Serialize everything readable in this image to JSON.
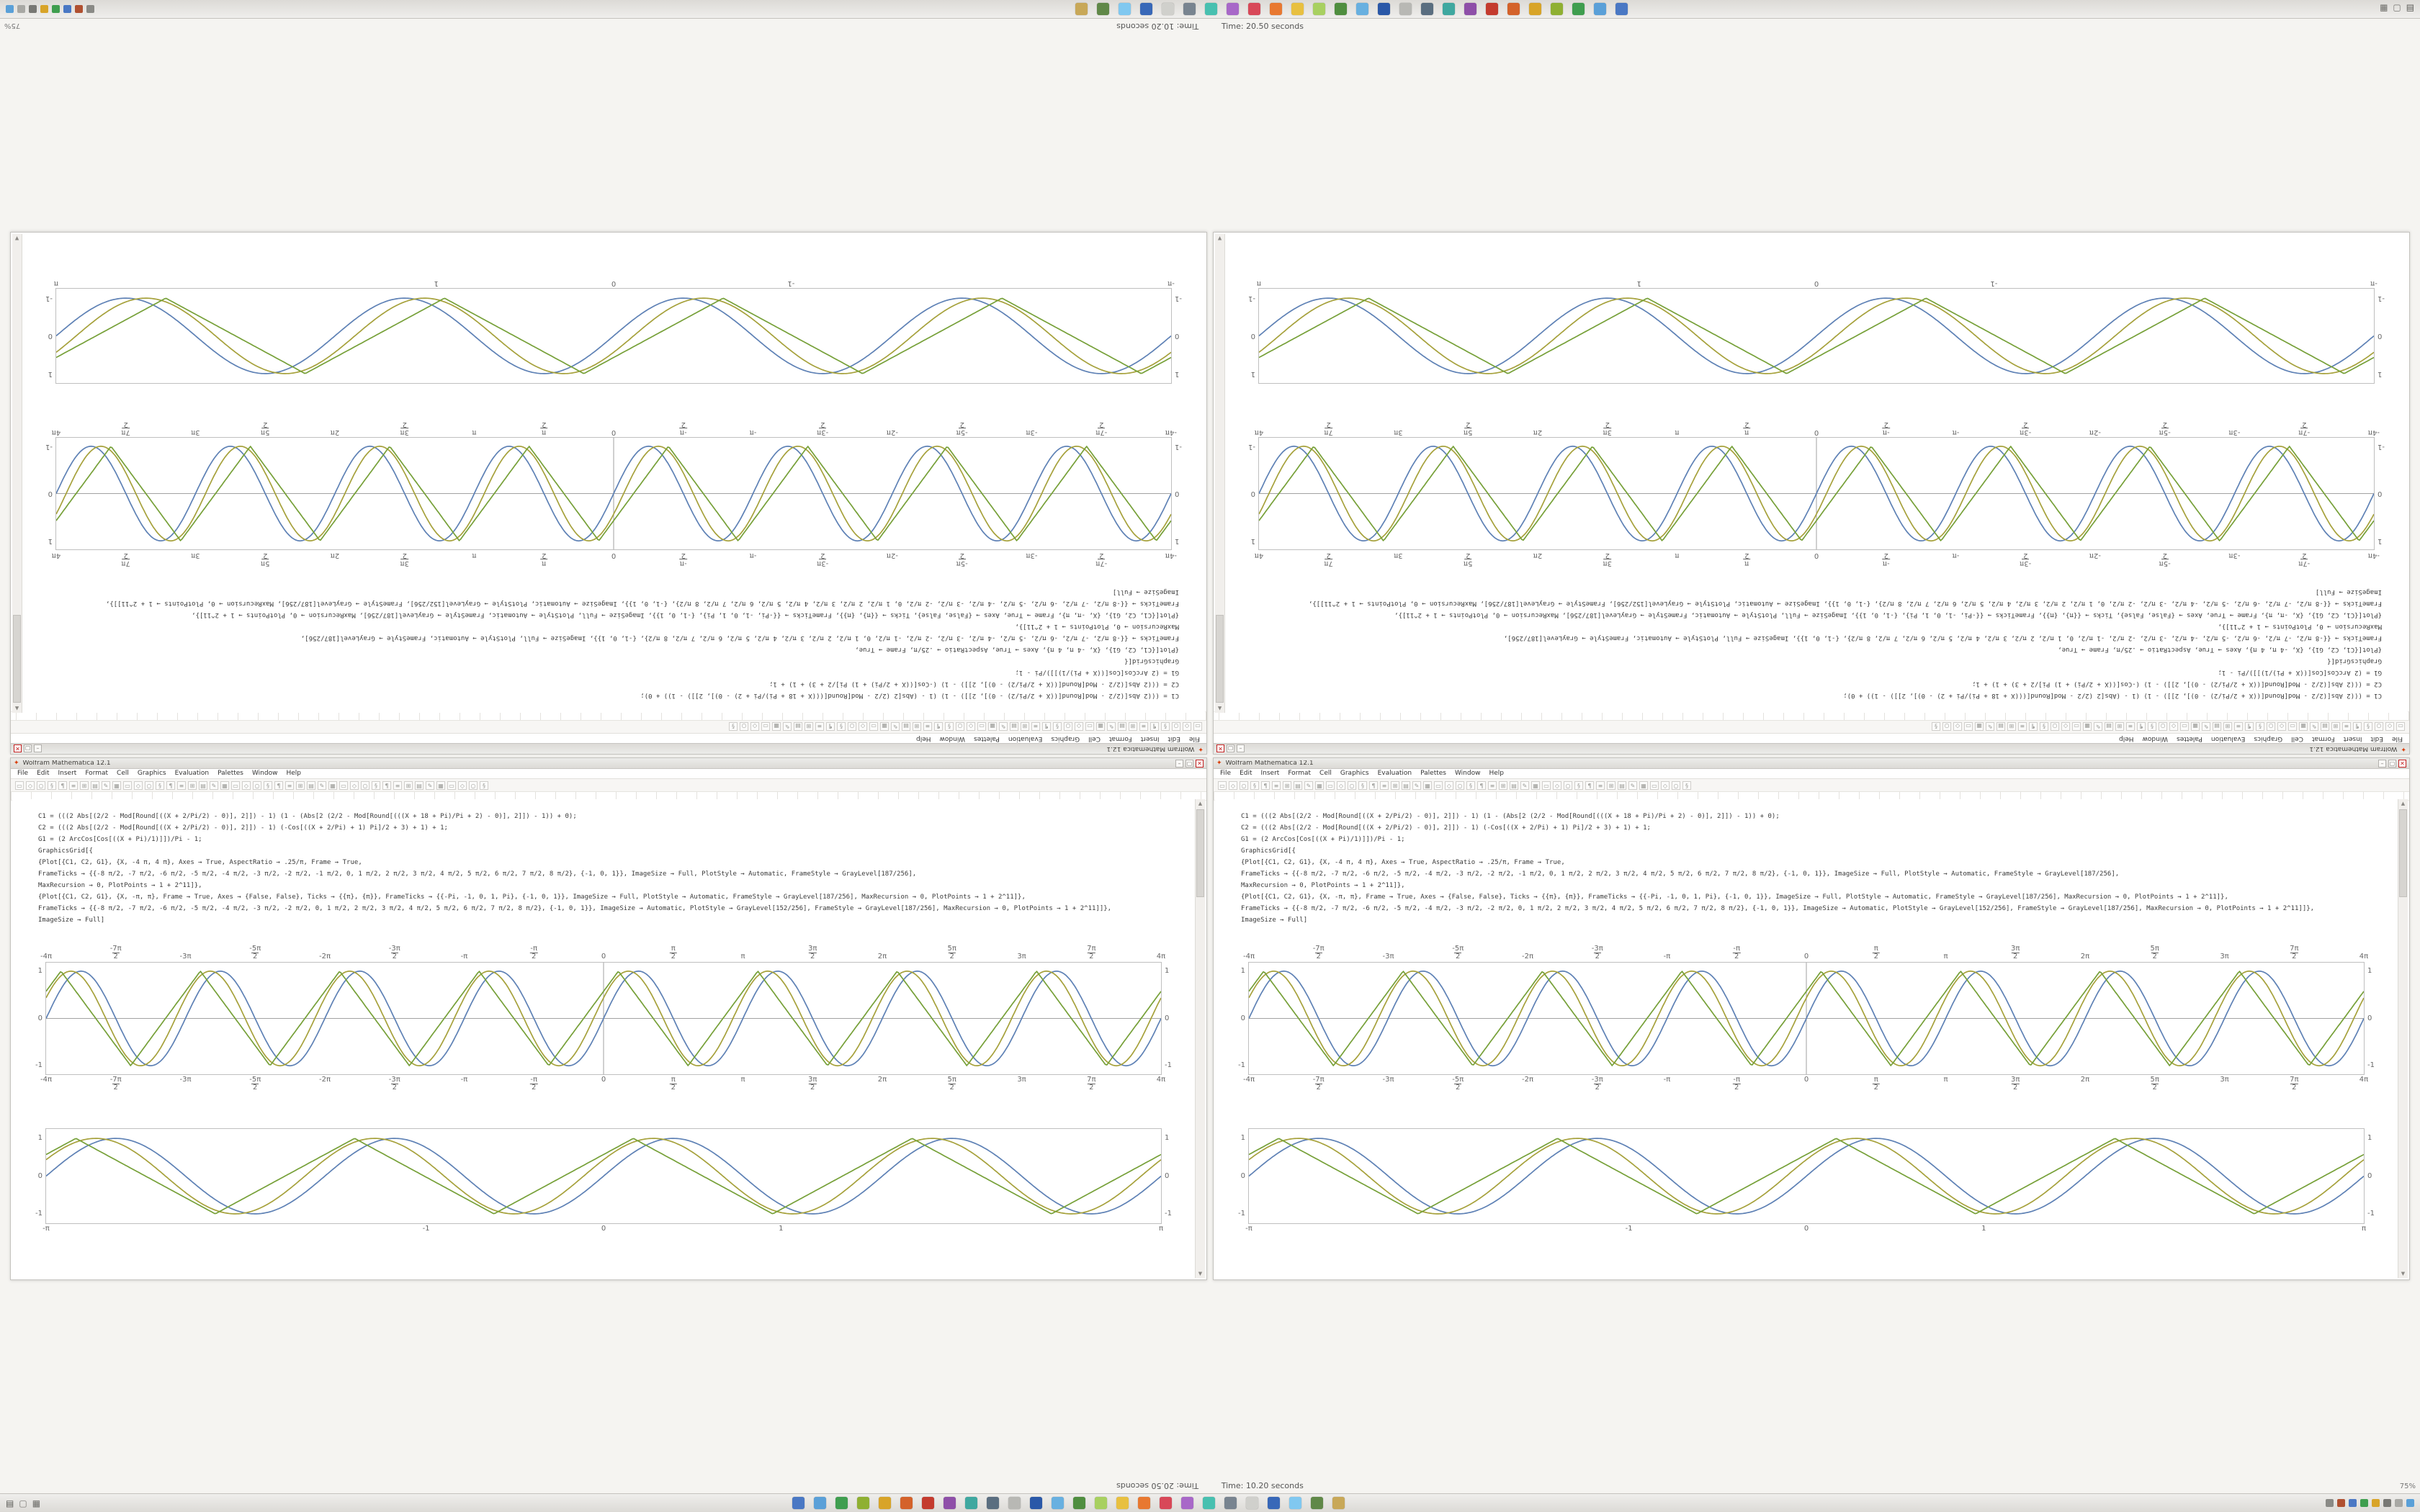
{
  "desktop": {
    "bg": "#f5f4f1"
  },
  "status": {
    "time_rotated": "Time: 20.50 seconds",
    "time_normal": "Time: 10.20 seconds",
    "zoom": "75%"
  },
  "taskbar": {
    "left_icons": [
      {
        "name": "start-menu-icon",
        "glyph": "▤",
        "color": "#5a5a56"
      },
      {
        "name": "show-desktop-icon",
        "glyph": "▢",
        "color": "#7a7874"
      },
      {
        "name": "file-manager-icon",
        "glyph": "▦",
        "color": "#6b6b67"
      }
    ],
    "app_icons": [
      {
        "name": "app-icon",
        "color": "#4a78c4"
      },
      {
        "name": "app-icon",
        "color": "#5aa0d8"
      },
      {
        "name": "app-icon",
        "color": "#3f9e4f"
      },
      {
        "name": "app-icon",
        "color": "#8fb032"
      },
      {
        "name": "app-icon",
        "color": "#d8a428"
      },
      {
        "name": "app-icon",
        "color": "#d4622a"
      },
      {
        "name": "app-icon",
        "color": "#c43b2e"
      },
      {
        "name": "app-icon",
        "color": "#8e4fa8"
      },
      {
        "name": "app-icon",
        "color": "#3fa8a0"
      },
      {
        "name": "app-icon",
        "color": "#5a6e80"
      },
      {
        "name": "app-icon",
        "color": "#b8b8b4"
      },
      {
        "name": "app-icon",
        "color": "#2a58a8"
      },
      {
        "name": "app-icon",
        "color": "#68b0e0"
      },
      {
        "name": "app-icon",
        "color": "#4f8e3f"
      },
      {
        "name": "app-icon",
        "color": "#a8d060"
      },
      {
        "name": "app-icon",
        "color": "#e8c040"
      },
      {
        "name": "app-icon",
        "color": "#e87830"
      },
      {
        "name": "app-icon",
        "color": "#d84858"
      },
      {
        "name": "app-icon",
        "color": "#a868c8"
      },
      {
        "name": "app-icon",
        "color": "#48c0b0"
      },
      {
        "name": "app-icon",
        "color": "#788490"
      },
      {
        "name": "app-icon",
        "color": "#d0d0cc"
      },
      {
        "name": "app-icon",
        "color": "#3868b8"
      },
      {
        "name": "app-icon",
        "color": "#80c8f0"
      },
      {
        "name": "app-icon",
        "color": "#608848"
      },
      {
        "name": "app-icon",
        "color": "#c8a858"
      }
    ],
    "tray_icons": [
      {
        "name": "tray-icon",
        "color": "#8a8a86"
      },
      {
        "name": "tray-icon",
        "color": "#b05030"
      },
      {
        "name": "tray-icon",
        "color": "#4a78c4"
      },
      {
        "name": "tray-icon",
        "color": "#3f9e4f"
      },
      {
        "name": "tray-icon",
        "color": "#d8a428"
      },
      {
        "name": "tray-icon",
        "color": "#787874"
      },
      {
        "name": "tray-icon",
        "color": "#a8a8a4"
      },
      {
        "name": "tray-icon",
        "color": "#5aa0d8"
      }
    ]
  },
  "window": {
    "title": "Wolfram Mathematica 12.1",
    "controls": {
      "minimize": "–",
      "maximize": "▢",
      "close": "✕"
    },
    "menu_items": [
      "File",
      "Edit",
      "Insert",
      "Format",
      "Cell",
      "Graphics",
      "Evaluation",
      "Palettes",
      "Window",
      "Help"
    ],
    "toolbar_glyphs": [
      "▭",
      "◇",
      "○",
      "§",
      "¶",
      "≡",
      "⊞",
      "▤",
      "✎",
      "▦"
    ],
    "code_lines": [
      "C1 = (((2 Abs[(2/2 - Mod[Round[((X + 2/Pi/2) - 0)], 2]]) - 1) (1 - (Abs[2 (2/2 - Mod[Round[(((X + 18 + Pi)/Pi + 2) - 0)], 2]]) - 1)) + 0);",
      "C2 = (((2 Abs[(2/2 - Mod[Round[((X + 2/Pi/2) - 0)], 2]]) - 1) (-Cos[((X + 2/Pi) + 1) Pi]/2 + 3) + 1) + 1;",
      "G1 = (2 ArcCos[Cos[((X + Pi)/1)]])/Pi - 1;",
      "GraphicsGrid[{",
      "{Plot[{C1, C2, G1}, {X, -4 π, 4 π}, Axes → True, AspectRatio → .25/π, Frame → True,",
      "FrameTicks → {{-8 π/2, -7 π/2, -6 π/2, -5 π/2, -4 π/2, -3 π/2, -2 π/2, -1 π/2, 0, 1 π/2, 2 π/2, 3 π/2, 4 π/2, 5 π/2, 6 π/2, 7 π/2, 8 π/2}, {-1, 0, 1}}, ImageSize → Full, PlotStyle → Automatic, FrameStyle → GrayLevel[187/256],",
      "MaxRecursion → 0, PlotPoints → 1 + 2^11]},",
      "{Plot[{C1, C2, G1}, {X, -π, π}, Frame → True, Axes → {False, False}, Ticks → {{π}, {π}}, FrameTicks → {{-Pi, -1, 0, 1, Pi}, {-1, 0, 1}}, ImageSize → Full, PlotStyle → Automatic, FrameStyle → GrayLevel[187/256], MaxRecursion → 0, PlotPoints → 1 + 2^11]},",
      "FrameTicks → {{-8 π/2, -7 π/2, -6 π/2, -5 π/2, -4 π/2, -3 π/2, -2 π/2, 0, 1 π/2, 2 π/2, 3 π/2, 4 π/2, 5 π/2, 6 π/2, 7 π/2, 8 π/2}, {-1, 0, 1}}, ImageSize → Automatic, PlotStyle → GrayLevel[152/256], FrameStyle → GrayLevel[187/256], MaxRecursion → 0, PlotPoints → 1 + 2^11]]},",
      "ImageSize → Full]"
    ]
  },
  "chart_data": [
    {
      "type": "line",
      "title": "",
      "x_range": [
        -12.566,
        12.566
      ],
      "ylim": [
        -1.18,
        1.18
      ],
      "axes": true,
      "grid": false,
      "legend": "none",
      "frame_color": "#bfbfbf",
      "labels": "top-bottom",
      "x_ticks": [
        {
          "v": -12.566,
          "n": "-4π"
        },
        {
          "v": -10.996,
          "n": "-7π",
          "d": "2"
        },
        {
          "v": -9.425,
          "n": "-3π"
        },
        {
          "v": -7.854,
          "n": "-5π",
          "d": "2"
        },
        {
          "v": -6.283,
          "n": "-2π"
        },
        {
          "v": -4.712,
          "n": "-3π",
          "d": "2"
        },
        {
          "v": -3.142,
          "n": "-π"
        },
        {
          "v": -1.571,
          "n": "-π",
          "d": "2"
        },
        {
          "v": 0,
          "n": "0"
        },
        {
          "v": 1.571,
          "n": "π",
          "d": "2"
        },
        {
          "v": 3.142,
          "n": "π"
        },
        {
          "v": 4.712,
          "n": "3π",
          "d": "2"
        },
        {
          "v": 6.283,
          "n": "2π"
        },
        {
          "v": 7.854,
          "n": "5π",
          "d": "2"
        },
        {
          "v": 9.425,
          "n": "3π"
        },
        {
          "v": 10.996,
          "n": "7π",
          "d": "2"
        },
        {
          "v": 12.566,
          "n": "4π"
        }
      ],
      "y_ticks": [
        {
          "v": -1,
          "label": "-1"
        },
        {
          "v": 0,
          "label": "0"
        },
        {
          "v": 1,
          "label": "1"
        }
      ],
      "series": [
        {
          "name": "C1",
          "color": "#5e81b5",
          "shape": "sin",
          "freq": 2,
          "phase": 0,
          "amplitude": 1
        },
        {
          "name": "C2",
          "color": "#a6a13b",
          "shape": "sin",
          "freq": 2,
          "phase": 0.45,
          "amplitude": 1
        },
        {
          "name": "G1",
          "color": "#76a038",
          "shape": "tri",
          "freq": 2,
          "phase": 0.9,
          "amplitude": 1
        }
      ]
    },
    {
      "type": "line",
      "title": "",
      "x_range": [
        -3.1416,
        3.1416
      ],
      "ylim": [
        -1.25,
        1.25
      ],
      "axes": false,
      "grid": false,
      "legend": "none",
      "frame_color": "#bfbfbf",
      "labels": "bottom",
      "x_ticks": [
        {
          "v": -3.1416,
          "n": "-π"
        },
        {
          "v": -1,
          "n": "-1"
        },
        {
          "v": 0,
          "n": "0"
        },
        {
          "v": 1,
          "n": "1"
        },
        {
          "v": 3.1416,
          "n": "π"
        }
      ],
      "y_ticks": [
        {
          "v": -1,
          "label": "-1"
        },
        {
          "v": 0,
          "label": "0"
        },
        {
          "v": 1,
          "label": "1"
        }
      ],
      "series": [
        {
          "name": "C1",
          "color": "#5e81b5",
          "shape": "sin",
          "freq": 4,
          "phase": 0,
          "amplitude": 1
        },
        {
          "name": "C2",
          "color": "#a6a13b",
          "shape": "sin",
          "freq": 4,
          "phase": 0.45,
          "amplitude": 1
        },
        {
          "name": "G1",
          "color": "#76a038",
          "shape": "tri",
          "freq": 4,
          "phase": 0.9,
          "amplitude": 1
        }
      ]
    }
  ]
}
